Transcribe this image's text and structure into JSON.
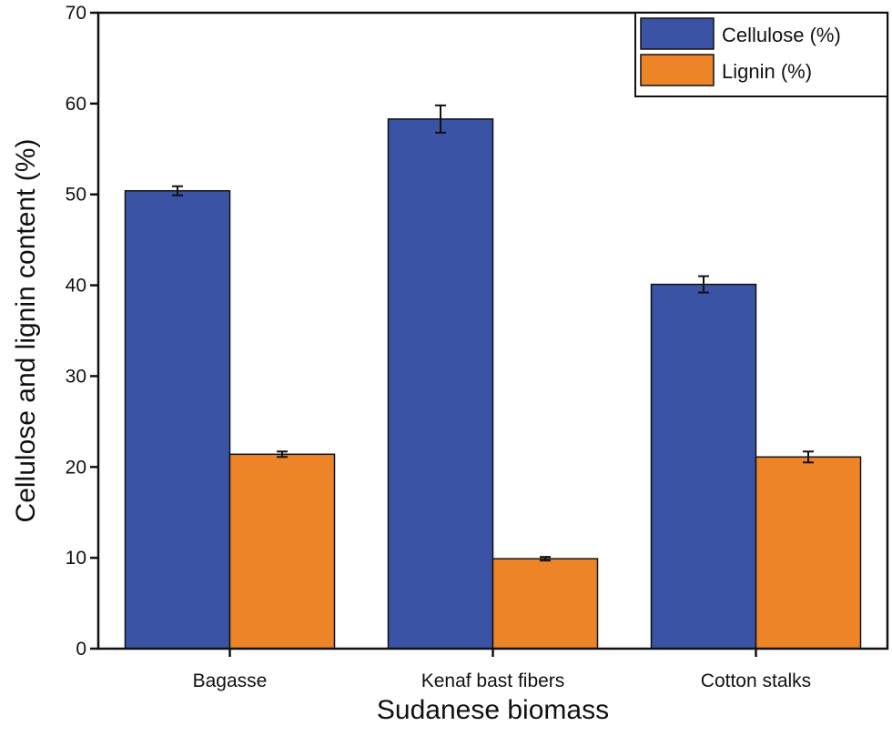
{
  "chart_data": {
    "type": "bar",
    "title": "",
    "xlabel": "Sudanese biomass",
    "ylabel": "Cellulose and lignin content (%)",
    "ylim": [
      0,
      70
    ],
    "yticks": [
      0,
      10,
      20,
      30,
      40,
      50,
      60,
      70
    ],
    "grid": false,
    "legend_position": "top-right",
    "categories": [
      "Bagasse",
      "Kenaf bast fibers",
      "Cotton stalks"
    ],
    "series": [
      {
        "name": "Cellulose (%)",
        "color": "#3a53a4",
        "values": [
          50.4,
          58.3,
          40.1
        ],
        "errors": [
          0.5,
          1.5,
          0.9
        ]
      },
      {
        "name": "Lignin (%)",
        "color": "#ed8428",
        "values": [
          21.4,
          9.9,
          21.1
        ],
        "errors": [
          0.3,
          0.2,
          0.6
        ]
      }
    ]
  }
}
